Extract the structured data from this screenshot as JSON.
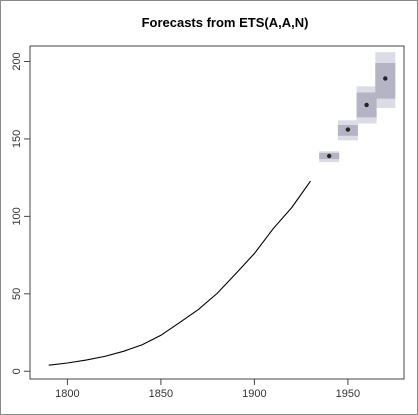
{
  "chart_data": {
    "type": "line",
    "title": "Forecasts from ETS(A,A,N)",
    "xlabel": "",
    "ylabel": "",
    "xlim": [
      1780,
      1980
    ],
    "ylim": [
      -5,
      210
    ],
    "x_ticks": [
      1800,
      1850,
      1900,
      1950
    ],
    "y_ticks": [
      0,
      50,
      100,
      150,
      200
    ],
    "grid": false,
    "series": [
      {
        "x": [
          1790,
          1800,
          1810,
          1820,
          1830,
          1840,
          1850,
          1860,
          1870,
          1880,
          1890,
          1900,
          1910,
          1920,
          1930
        ],
        "y": [
          3.9,
          5.3,
          7.2,
          9.6,
          12.9,
          17.1,
          23.2,
          31.4,
          39.8,
          50.2,
          62.9,
          76.0,
          92.0,
          105.7,
          122.8
        ]
      }
    ],
    "forecast": {
      "x": [
        1940,
        1950,
        1960,
        1970
      ],
      "point": [
        139,
        156,
        172,
        189
      ],
      "lo80": [
        137,
        152,
        164,
        176
      ],
      "hi80": [
        141,
        159,
        180,
        199
      ],
      "lo95": [
        135,
        149,
        160,
        170
      ],
      "hi95": [
        142,
        162,
        184,
        206
      ]
    },
    "colors": {
      "line": "#000000",
      "band80": "#b4b4c5",
      "band95": "#dcdce6",
      "point": "#222222",
      "axis": "#444444"
    }
  }
}
